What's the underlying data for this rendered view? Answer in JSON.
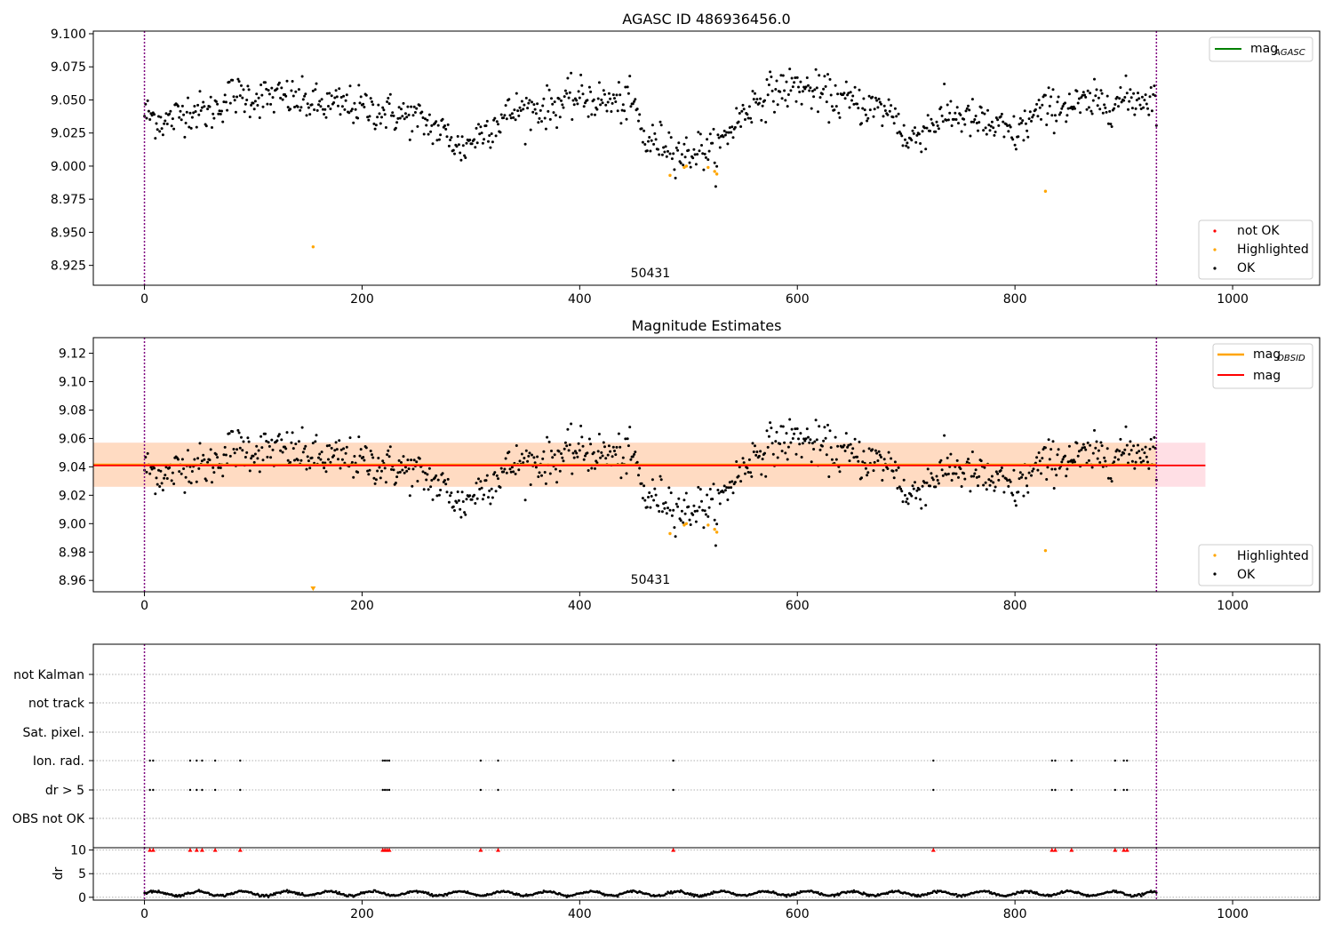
{
  "colors": {
    "ok": "#000000",
    "highlighted": "#ffa500",
    "not_ok": "#ff0000",
    "mag_agasc_line": "#008000",
    "mag_obsid_line": "#ffa500",
    "mag_line": "#ff0000",
    "obs_boundary": "#800080",
    "mag_band": "#ffc0cb",
    "obsid_band": "#ffdab9"
  },
  "chart_data": [
    {
      "type": "scatter",
      "title": "AGASC ID 486936456.0",
      "xlim": [
        -47,
        1080
      ],
      "ylim": [
        8.91,
        9.102
      ],
      "xticks": [
        0,
        200,
        400,
        600,
        800,
        1000
      ],
      "yticks": [
        8.925,
        8.95,
        8.975,
        9.0,
        9.025,
        9.05,
        9.075,
        9.1
      ],
      "xtick_labels": [
        "0",
        "200",
        "400",
        "600",
        "800",
        "1000"
      ],
      "ytick_labels": [
        "8.925",
        "8.950",
        "8.975",
        "9.000",
        "9.025",
        "9.050",
        "9.075",
        "9.100"
      ],
      "n_points": 931,
      "obs_boundaries": [
        0,
        930
      ],
      "obsid_annotation": "50431",
      "obsid_annotation_x": 465,
      "ok_profile": {
        "x": [
          0,
          20,
          40,
          60,
          80,
          100,
          130,
          160,
          190,
          220,
          250,
          280,
          290,
          310,
          340,
          370,
          400,
          430,
          450,
          460,
          480,
          495,
          510,
          525,
          540,
          560,
          580,
          600,
          630,
          660,
          690,
          700,
          720,
          740,
          760,
          790,
          800,
          820,
          840,
          860,
          900,
          930
        ],
        "y": [
          9.04,
          9.033,
          9.043,
          9.04,
          9.054,
          9.052,
          9.052,
          9.046,
          9.046,
          9.041,
          9.036,
          9.023,
          9.012,
          9.026,
          9.042,
          9.044,
          9.052,
          9.048,
          9.047,
          9.018,
          9.018,
          9.008,
          9.013,
          9.01,
          9.03,
          9.048,
          9.057,
          9.06,
          9.052,
          9.046,
          9.04,
          9.017,
          9.03,
          9.04,
          9.035,
          9.027,
          9.023,
          9.04,
          9.046,
          9.046,
          9.05,
          9.052
        ]
      },
      "ok_scatter": 0.0075,
      "series": [
        {
          "name": "not OK",
          "x": [],
          "y": []
        },
        {
          "name": "Highlighted",
          "x": [
            155,
            483,
            496,
            498,
            518,
            524,
            526,
            828
          ],
          "y": [
            8.939,
            8.993,
            8.999,
            9.0,
            8.999,
            8.996,
            8.994,
            8.981
          ]
        },
        {
          "name": "OK",
          "x": [],
          "y": []
        }
      ],
      "line_legend": [
        {
          "name": "mag",
          "subscript": "AGASC"
        }
      ],
      "marker_legend": [
        "not OK",
        "Highlighted",
        "OK"
      ],
      "legend_placement": {
        "lines": "top-right",
        "markers": "bottom-right"
      }
    },
    {
      "type": "scatter",
      "title": "Magnitude Estimates",
      "xlim": [
        -47,
        1080
      ],
      "ylim": [
        8.952,
        9.131
      ],
      "xticks": [
        0,
        200,
        400,
        600,
        800,
        1000
      ],
      "yticks": [
        8.96,
        8.98,
        9.0,
        9.02,
        9.04,
        9.06,
        9.08,
        9.1,
        9.12
      ],
      "xtick_labels": [
        "0",
        "200",
        "400",
        "600",
        "800",
        "1000"
      ],
      "ytick_labels": [
        "8.96",
        "8.98",
        "9.00",
        "9.02",
        "9.04",
        "9.06",
        "9.08",
        "9.10",
        "9.12"
      ],
      "obsid_annotation": "50431",
      "obsid_annotation_x": 465,
      "mag": 9.041,
      "mag_band": [
        9.026,
        9.057
      ],
      "mag_obsid": 9.0415,
      "mag_obsid_band": [
        9.026,
        9.057
      ],
      "band_x_range": [
        -47,
        975
      ],
      "obsid_band_x_range": [
        0,
        930
      ],
      "series": [
        {
          "name": "Highlighted",
          "x": [
            155,
            483,
            496,
            498,
            518,
            524,
            526,
            828
          ],
          "y": [
            8.953,
            8.993,
            8.999,
            9.0,
            8.999,
            8.996,
            8.994,
            8.981
          ]
        },
        {
          "name": "OK",
          "x": [],
          "y": []
        }
      ],
      "clipped_low_marker_x": 155,
      "line_legend": [
        {
          "name": "mag",
          "subscript": "OBSID"
        },
        {
          "name": "mag",
          "subscript": ""
        }
      ],
      "marker_legend": [
        "Highlighted",
        "OK"
      ],
      "legend_placement": {
        "lines": "top-right",
        "markers": "bottom-right"
      }
    },
    {
      "type": "scatter",
      "title": "",
      "xlim": [
        -47,
        1080
      ],
      "categories": [
        "not Kalman",
        "not track",
        "Sat. pixel.",
        "Ion. rad.",
        "dr > 5",
        "OBS not OK"
      ],
      "flag_x": {
        "Ion. rad.": [
          5,
          8,
          42,
          48,
          53,
          65,
          88,
          219,
          221,
          223,
          225,
          309,
          325,
          486,
          725,
          834,
          837,
          852,
          892,
          900,
          903
        ],
        "dr > 5": [
          5,
          8,
          42,
          48,
          53,
          65,
          88,
          219,
          221,
          223,
          225,
          309,
          325,
          486,
          725,
          834,
          837,
          852,
          892,
          900,
          903
        ]
      },
      "gridlines": true
    },
    {
      "type": "scatter",
      "title": "",
      "xlim": [
        -47,
        1080
      ],
      "ylim": [
        -0.6,
        10.5
      ],
      "ylabel": "dr",
      "yticks": [
        0,
        5,
        10
      ],
      "ytick_labels": [
        "0",
        "5",
        "10"
      ],
      "xticks": [
        0,
        200,
        400,
        600,
        800,
        1000
      ],
      "xtick_labels": [
        "0",
        "200",
        "400",
        "600",
        "800",
        "1000"
      ],
      "dr_profile": {
        "base": 0.8,
        "amp": 0.45,
        "period": 40
      },
      "dr_clipped_x": [
        5,
        8,
        42,
        48,
        53,
        65,
        88,
        219,
        221,
        223,
        225,
        309,
        325,
        486,
        725,
        834,
        837,
        852,
        892,
        900,
        903
      ],
      "dr_clipped_y": 10
    }
  ]
}
